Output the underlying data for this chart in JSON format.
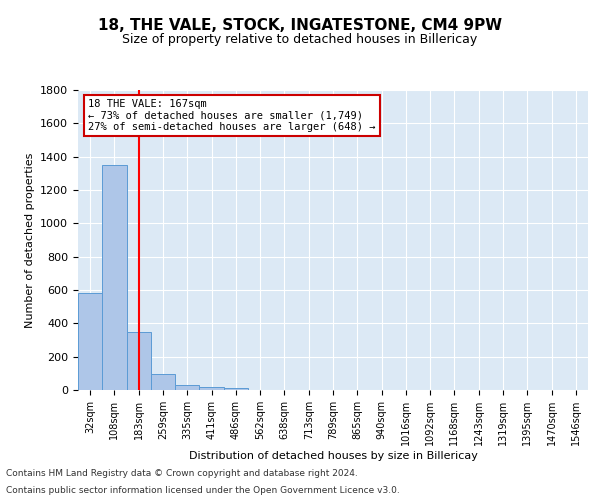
{
  "title": "18, THE VALE, STOCK, INGATESTONE, CM4 9PW",
  "subtitle": "Size of property relative to detached houses in Billericay",
  "xlabel": "Distribution of detached houses by size in Billericay",
  "ylabel": "Number of detached properties",
  "bar_labels": [
    "32sqm",
    "108sqm",
    "183sqm",
    "259sqm",
    "335sqm",
    "411sqm",
    "486sqm",
    "562sqm",
    "638sqm",
    "713sqm",
    "789sqm",
    "865sqm",
    "940sqm",
    "1016sqm",
    "1092sqm",
    "1168sqm",
    "1243sqm",
    "1319sqm",
    "1395sqm",
    "1470sqm",
    "1546sqm"
  ],
  "bar_values": [
    580,
    1350,
    350,
    95,
    30,
    20,
    15,
    0,
    0,
    0,
    0,
    0,
    0,
    0,
    0,
    0,
    0,
    0,
    0,
    0,
    0
  ],
  "bar_color": "#aec6e8",
  "bar_edge_color": "#5b9bd5",
  "bg_color": "#dce9f5",
  "grid_color": "#ffffff",
  "red_line_x": 2,
  "annotation_text": "18 THE VALE: 167sqm\n← 73% of detached houses are smaller (1,749)\n27% of semi-detached houses are larger (648) →",
  "annotation_box_color": "#ffffff",
  "annotation_box_edge": "#cc0000",
  "footnote1": "Contains HM Land Registry data © Crown copyright and database right 2024.",
  "footnote2": "Contains public sector information licensed under the Open Government Licence v3.0.",
  "ylim": [
    0,
    1800
  ],
  "yticks": [
    0,
    200,
    400,
    600,
    800,
    1000,
    1200,
    1400,
    1600,
    1800
  ]
}
